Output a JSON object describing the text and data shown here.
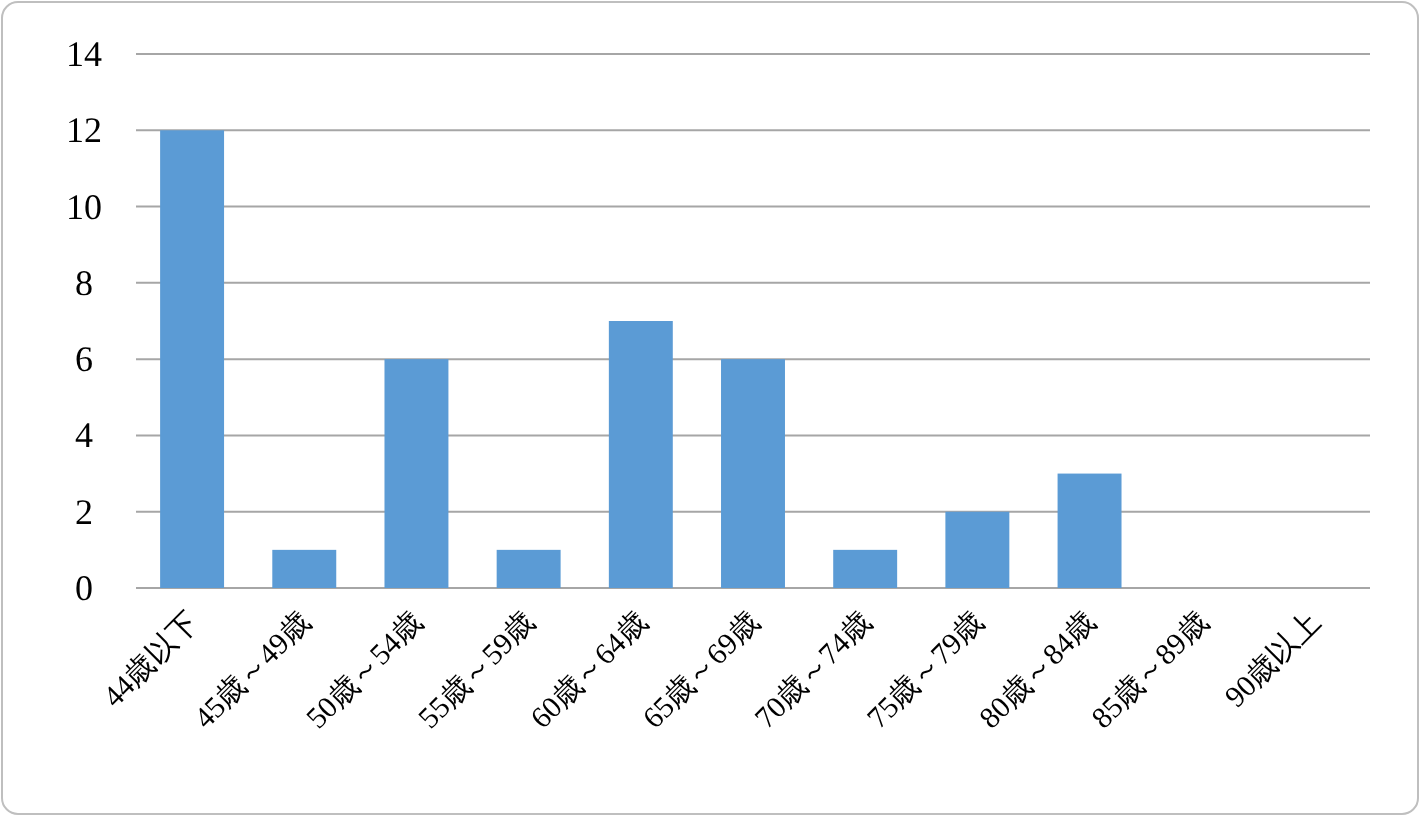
{
  "chart_data": {
    "type": "bar",
    "categories": [
      "44歳以下",
      "45歳～49歳",
      "50歳～54歳",
      "55歳～59歳",
      "60歳～64歳",
      "65歳～69歳",
      "70歳～74歳",
      "75歳～79歳",
      "80歳～84歳",
      "85歳～89歳",
      "90歳以上"
    ],
    "values": [
      12,
      1,
      6,
      1,
      7,
      6,
      1,
      2,
      3,
      0,
      0
    ],
    "color": "#5b9bd5",
    "ylim": [
      0,
      14
    ],
    "yticks": [
      0,
      2,
      4,
      6,
      8,
      10,
      12,
      14
    ],
    "grid": "y"
  }
}
